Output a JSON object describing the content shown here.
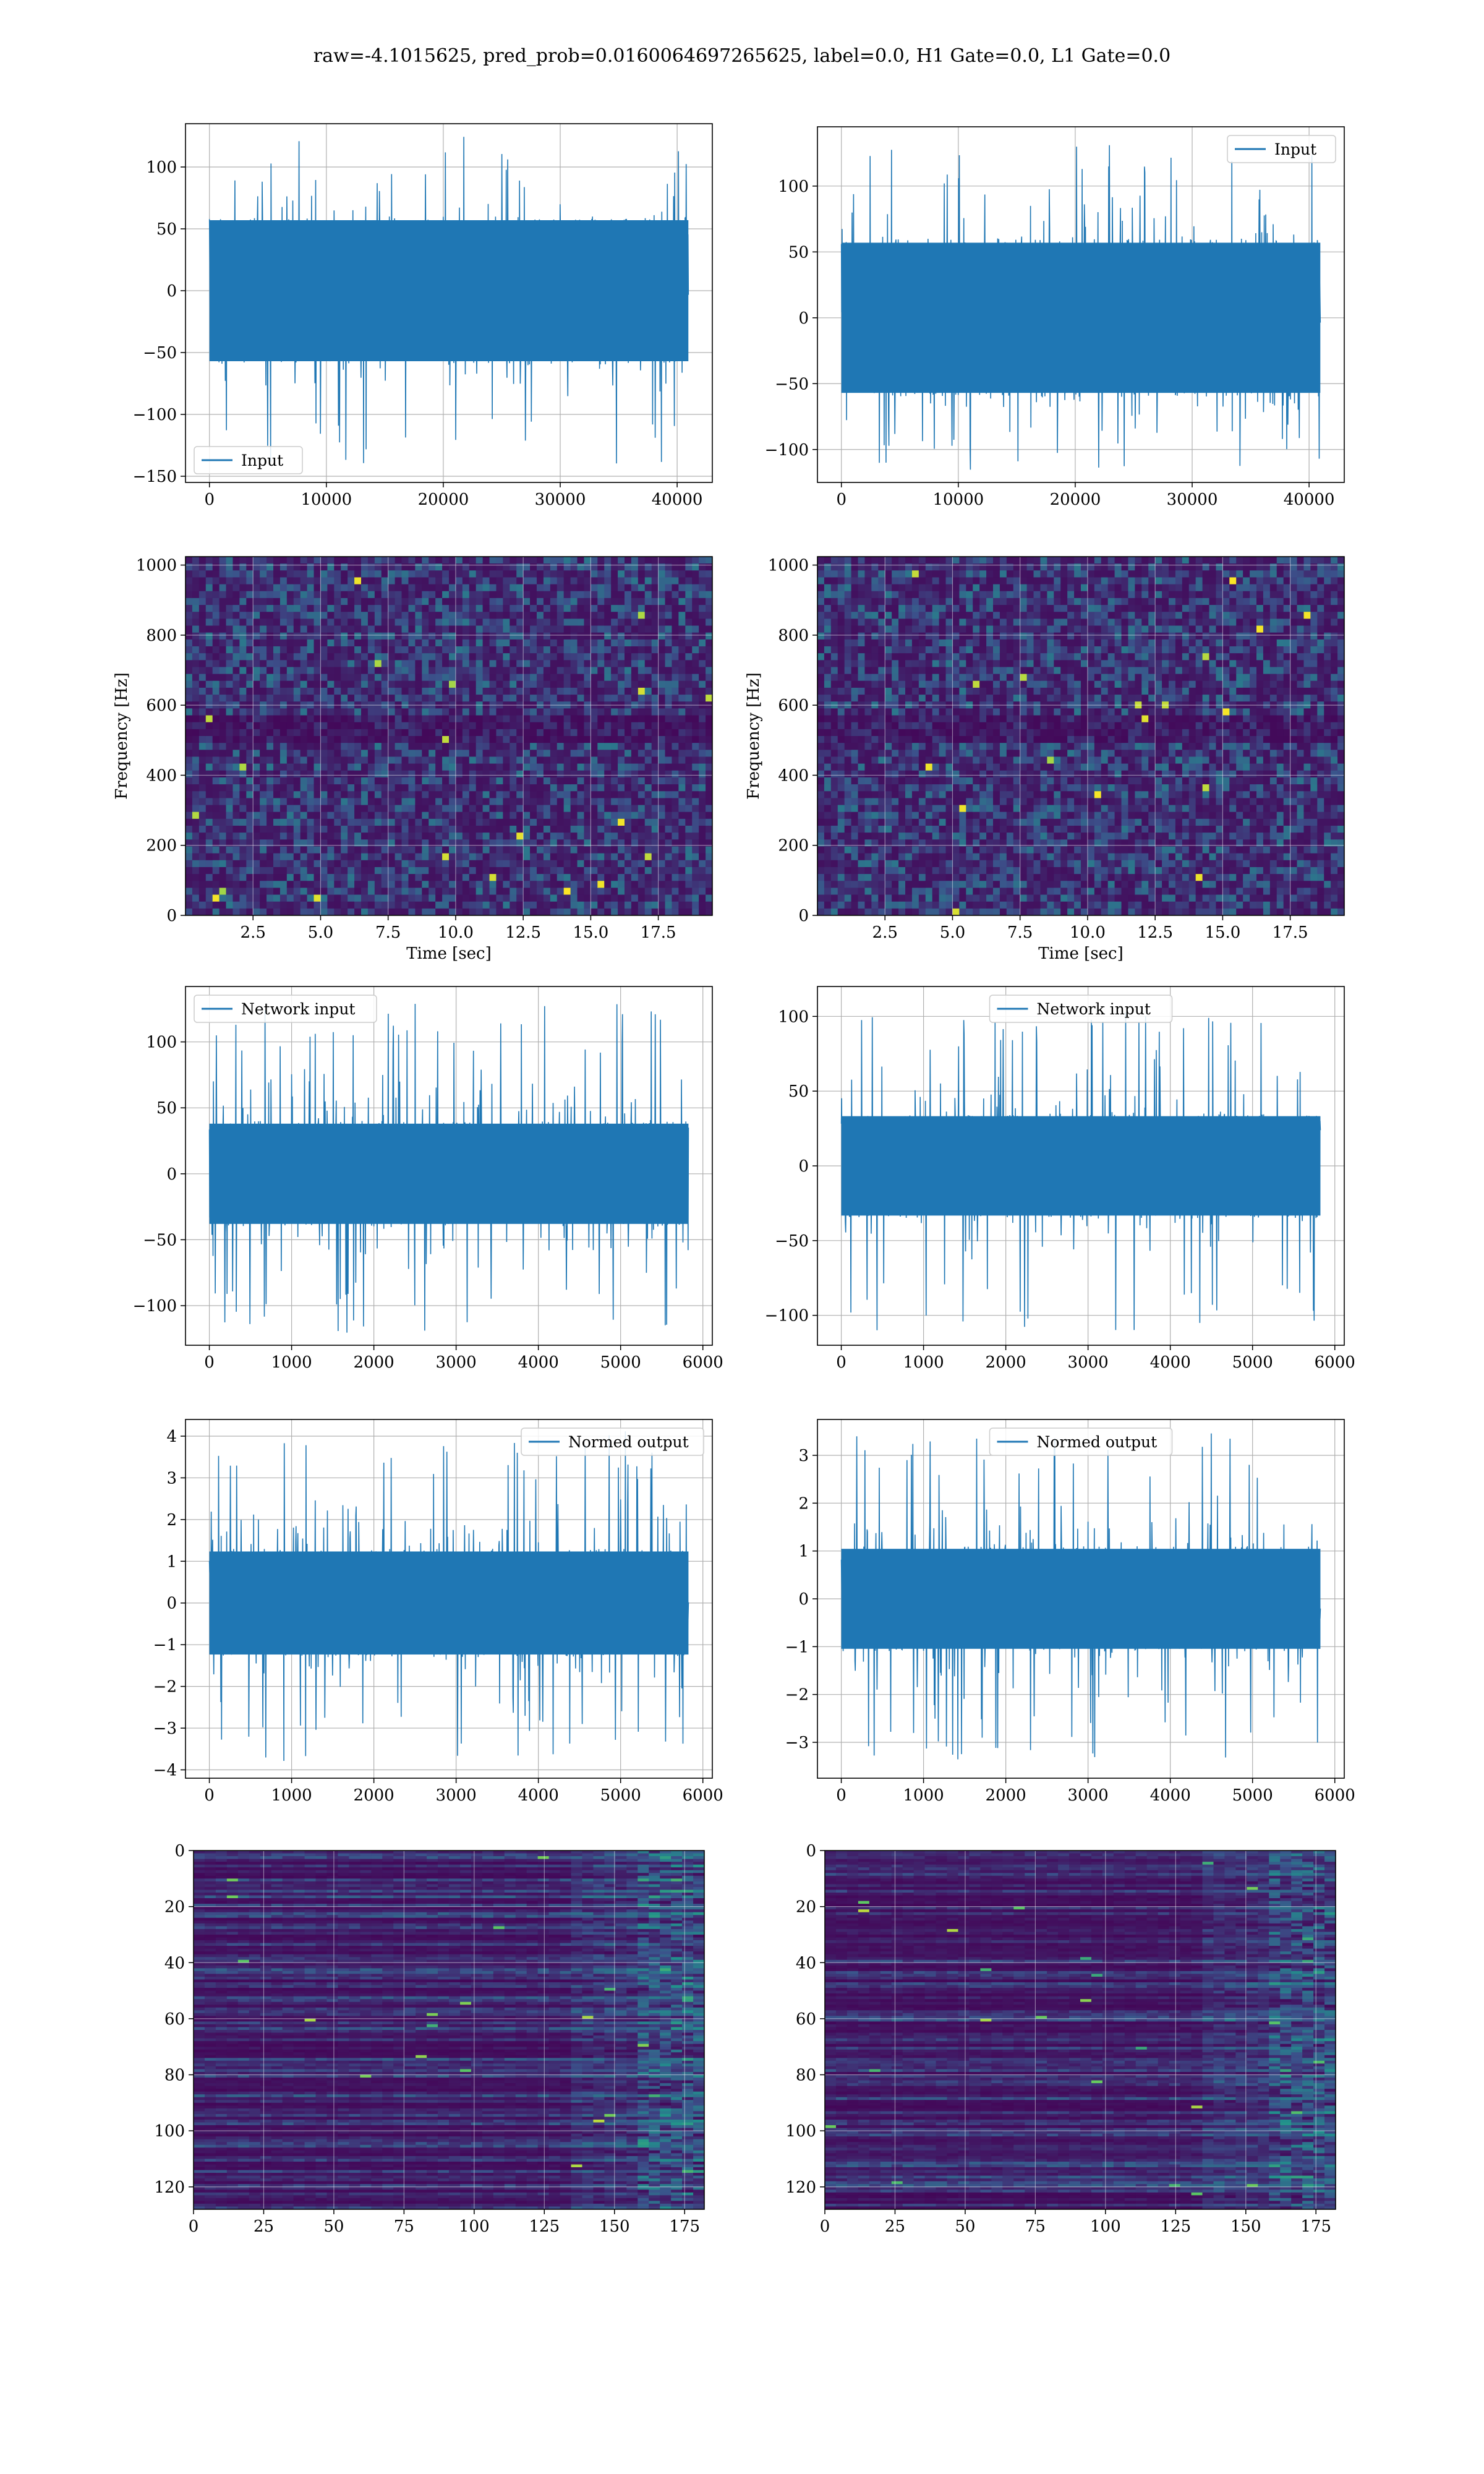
{
  "figure": {
    "title": "raw=-4.1015625, pred_prob=0.0160064697265625, label=0.0, H1 Gate=0.0, L1 Gate=0.0"
  },
  "colors": {
    "line": "#1f77b4",
    "grid": "#b0b0b0",
    "axes": "#000000",
    "viridis_low": "#440154",
    "viridis_high": "#fde725"
  },
  "chart_data": [
    {
      "type": "line",
      "name": "Input",
      "legend": "lower-left",
      "xlim": [
        -2048,
        43008
      ],
      "ylim": [
        -155,
        135
      ],
      "xticks": [
        0,
        10000,
        20000,
        30000,
        40000
      ],
      "yticks": [
        -150,
        -100,
        -50,
        0,
        50,
        100
      ],
      "xticklabels": [
        "0",
        "10000",
        "20000",
        "30000",
        "40000"
      ],
      "yticklabels": [
        "−150",
        "−100",
        "−50",
        "0",
        "50",
        "100"
      ],
      "x_range": [
        0,
        40960
      ],
      "band": 60,
      "spike_max": 125,
      "spike_min": -140
    },
    {
      "type": "line",
      "name": "Input",
      "legend": "upper-right",
      "xlim": [
        -2048,
        43008
      ],
      "ylim": [
        -125,
        145
      ],
      "xticks": [
        0,
        10000,
        20000,
        30000,
        40000
      ],
      "yticks": [
        -100,
        -50,
        0,
        50,
        100
      ],
      "xticklabels": [
        "0",
        "10000",
        "20000",
        "30000",
        "40000"
      ],
      "yticklabels": [
        "−100",
        "−50",
        "0",
        "50",
        "100"
      ],
      "x_range": [
        0,
        40960
      ],
      "band": 60,
      "spike_max": 133,
      "spike_min": -120
    },
    {
      "type": "heatmap",
      "xlim": [
        0,
        19.5
      ],
      "ylim": [
        0,
        1024
      ],
      "xticks": [
        2.5,
        5.0,
        7.5,
        10.0,
        12.5,
        15.0,
        17.5
      ],
      "yticks": [
        0,
        200,
        400,
        600,
        800,
        1000
      ],
      "xticklabels": [
        "2.5",
        "5.0",
        "7.5",
        "10.0",
        "12.5",
        "15.0",
        "17.5"
      ],
      "yticklabels": [
        "0",
        "200",
        "400",
        "600",
        "800",
        "1000"
      ],
      "xlabel": "Time [sec]",
      "ylabel": "Frequency [Hz]"
    },
    {
      "type": "heatmap",
      "xlim": [
        0,
        19.5
      ],
      "ylim": [
        0,
        1024
      ],
      "xticks": [
        2.5,
        5.0,
        7.5,
        10.0,
        12.5,
        15.0,
        17.5
      ],
      "yticks": [
        0,
        200,
        400,
        600,
        800,
        1000
      ],
      "xticklabels": [
        "2.5",
        "5.0",
        "7.5",
        "10.0",
        "12.5",
        "15.0",
        "17.5"
      ],
      "yticklabels": [
        "0",
        "200",
        "400",
        "600",
        "800",
        "1000"
      ],
      "xlabel": "Time [sec]",
      "ylabel": "Frequency [Hz]"
    },
    {
      "type": "line",
      "name": "Network input",
      "legend": "upper-left",
      "xlim": [
        -290,
        6115
      ],
      "ylim": [
        -130,
        142
      ],
      "xticks": [
        0,
        1000,
        2000,
        3000,
        4000,
        5000,
        6000
      ],
      "yticks": [
        -100,
        -50,
        0,
        50,
        100
      ],
      "xticklabels": [
        "0",
        "1000",
        "2000",
        "3000",
        "4000",
        "5000",
        "6000"
      ],
      "yticklabels": [
        "−100",
        "−50",
        "0",
        "50",
        "100"
      ],
      "x_range": [
        0,
        5825
      ],
      "band": 40,
      "spike_max": 130,
      "spike_min": -122
    },
    {
      "type": "line",
      "name": "Network input",
      "legend": "upper-center",
      "xlim": [
        -290,
        6115
      ],
      "ylim": [
        -120,
        120
      ],
      "xticks": [
        0,
        1000,
        2000,
        3000,
        4000,
        5000,
        6000
      ],
      "yticks": [
        -100,
        -50,
        0,
        50,
        100
      ],
      "xticklabels": [
        "0",
        "1000",
        "2000",
        "3000",
        "4000",
        "5000",
        "6000"
      ],
      "yticklabels": [
        "−100",
        "−50",
        "0",
        "50",
        "100"
      ],
      "x_range": [
        0,
        5825
      ],
      "band": 35,
      "spike_max": 105,
      "spike_min": -110
    },
    {
      "type": "line",
      "name": "Normed output",
      "legend": "upper-right",
      "xlim": [
        -290,
        6115
      ],
      "ylim": [
        -4.2,
        4.4
      ],
      "xticks": [
        0,
        1000,
        2000,
        3000,
        4000,
        5000,
        6000
      ],
      "yticks": [
        -4,
        -3,
        -2,
        -1,
        0,
        1,
        2,
        3,
        4
      ],
      "xticklabels": [
        "0",
        "1000",
        "2000",
        "3000",
        "4000",
        "5000",
        "6000"
      ],
      "yticklabels": [
        "−4",
        "−3",
        "−2",
        "−1",
        "0",
        "1",
        "2",
        "3",
        "4"
      ],
      "x_range": [
        0,
        5825
      ],
      "band": 1.3,
      "spike_max": 4.15,
      "spike_min": -3.8
    },
    {
      "type": "line",
      "name": "Normed output",
      "legend": "upper-center",
      "xlim": [
        -290,
        6115
      ],
      "ylim": [
        -3.75,
        3.75
      ],
      "xticks": [
        0,
        1000,
        2000,
        3000,
        4000,
        5000,
        6000
      ],
      "yticks": [
        -3,
        -2,
        -1,
        0,
        1,
        2,
        3
      ],
      "xticklabels": [
        "0",
        "1000",
        "2000",
        "3000",
        "4000",
        "5000",
        "6000"
      ],
      "yticklabels": [
        "−3",
        "−2",
        "−1",
        "0",
        "1",
        "2",
        "3"
      ],
      "x_range": [
        0,
        5825
      ],
      "band": 1.1,
      "spike_max": 3.5,
      "spike_min": -3.4
    },
    {
      "type": "heatmap",
      "xlim": [
        0,
        182
      ],
      "ylim": [
        128,
        0
      ],
      "xticks": [
        0,
        25,
        50,
        75,
        100,
        125,
        150,
        175
      ],
      "yticks": [
        0,
        20,
        40,
        60,
        80,
        100,
        120
      ],
      "xticklabels": [
        "0",
        "25",
        "50",
        "75",
        "100",
        "125",
        "150",
        "175"
      ],
      "yticklabels": [
        "0",
        "20",
        "40",
        "60",
        "80",
        "100",
        "120"
      ]
    },
    {
      "type": "heatmap",
      "xlim": [
        0,
        182
      ],
      "ylim": [
        128,
        0
      ],
      "xticks": [
        0,
        25,
        50,
        75,
        100,
        125,
        150,
        175
      ],
      "yticks": [
        0,
        20,
        40,
        60,
        80,
        100,
        120
      ],
      "xticklabels": [
        "0",
        "25",
        "50",
        "75",
        "100",
        "125",
        "150",
        "175"
      ],
      "yticklabels": [
        "0",
        "20",
        "40",
        "60",
        "80",
        "100",
        "120"
      ]
    }
  ]
}
